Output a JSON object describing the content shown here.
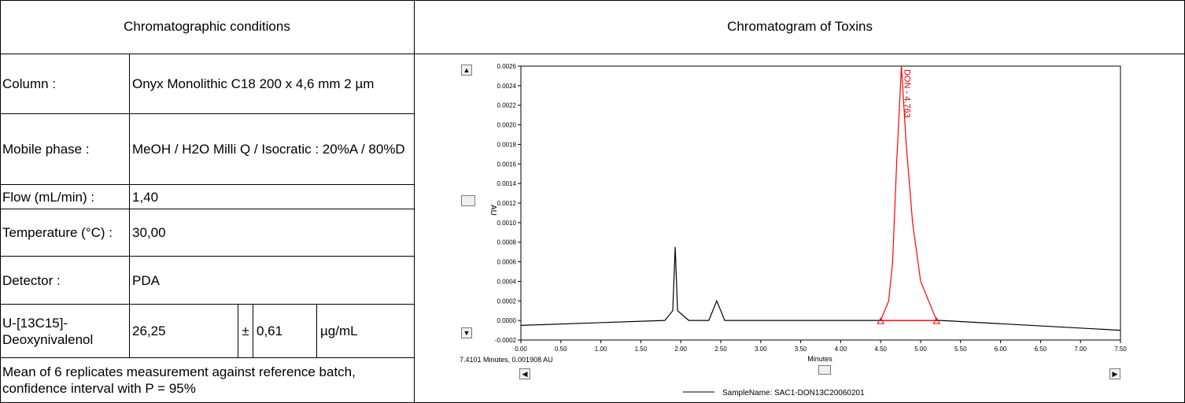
{
  "headers": {
    "left": "Chromatographic conditions",
    "right": "Chromatogram of Toxins"
  },
  "conditions": {
    "column_label": "Column :",
    "column_value": "Onyx Monolithic C18 200 x 4,6 mm 2 µm",
    "mobile_label": "Mobile phase :",
    "mobile_value": "MeOH / H2O Milli Q / Isocratic : 20%A / 80%D",
    "flow_label": "Flow (mL/min) :",
    "flow_value": "1,40",
    "temp_label": "Temperature (°C) :",
    "temp_value": "30,00",
    "detector_label": "Detector :",
    "detector_value": "PDA",
    "standard_label": "U-[13C15]-Deoxynivalenol",
    "standard_value": "26,25",
    "standard_pm": "±",
    "standard_uncertainty": "0,61",
    "standard_unit": "µg/mL",
    "note": "Mean of 6 replicates measurement against reference batch, confidence interval with P = 95%"
  },
  "chart_data": {
    "type": "line",
    "xlabel": "Minutes",
    "ylabel": "AU",
    "xlim": [
      0,
      7.5
    ],
    "ylim": [
      -0.0002,
      0.0026
    ],
    "x_ticks": [
      "0.00",
      "0.50",
      "1.00",
      "1.50",
      "2.00",
      "2.50",
      "3.00",
      "3.50",
      "4.00",
      "4.50",
      "5.00",
      "5.50",
      "6.00",
      "6.50",
      "7.00",
      "7.50"
    ],
    "y_ticks": [
      "-0.0002",
      "0.0000",
      "0.0002",
      "0.0004",
      "0.0006",
      "0.0008",
      "0.0010",
      "0.0012",
      "0.0014",
      "0.0016",
      "0.0018",
      "0.0020",
      "0.0022",
      "0.0024",
      "0.0026"
    ],
    "series": [
      {
        "name": "SampleName: SAC1-DON13C20060201",
        "color": "#000000",
        "points": [
          [
            0,
            -5e-05
          ],
          [
            1.8,
            0.0
          ],
          [
            1.9,
            0.0001
          ],
          [
            1.93,
            0.00075
          ],
          [
            1.96,
            0.0001
          ],
          [
            2.1,
            0.0
          ],
          [
            2.35,
            0.0
          ],
          [
            2.45,
            0.0002
          ],
          [
            2.55,
            0.0
          ],
          [
            4.5,
            0.0
          ],
          [
            5.25,
            0.0
          ],
          [
            7.5,
            -0.0001
          ]
        ]
      },
      {
        "name": "DON peak",
        "color": "#ff0000",
        "points": [
          [
            4.5,
            0.0
          ],
          [
            4.6,
            0.0002
          ],
          [
            4.65,
            0.0006
          ],
          [
            4.7,
            0.0016
          ],
          [
            4.76,
            0.0026
          ],
          [
            4.82,
            0.0018
          ],
          [
            4.9,
            0.001
          ],
          [
            5.0,
            0.0004
          ],
          [
            5.1,
            0.0002
          ],
          [
            5.2,
            0.0
          ]
        ]
      }
    ],
    "annotation": "DON - 4.763",
    "cursor_readout": "7.4101 Minutes, 0.001908 AU",
    "legend": "SampleName: SAC1-DON13C20060201"
  }
}
